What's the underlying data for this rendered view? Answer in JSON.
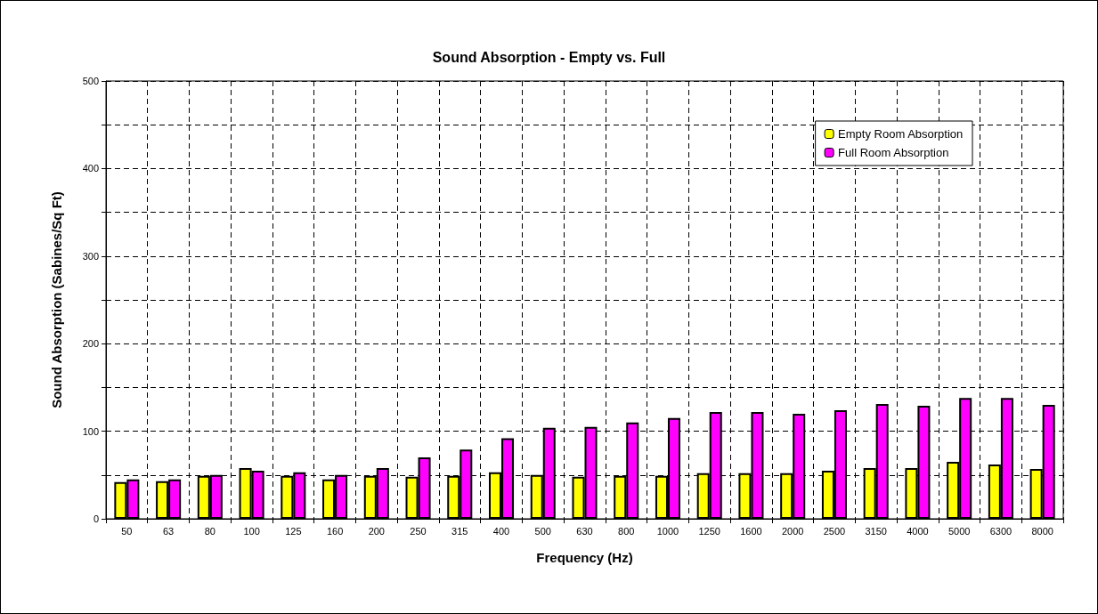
{
  "chart_data": {
    "type": "bar",
    "title": "Sound Absorption - Empty vs. Full",
    "xlabel": "Frequency (Hz)",
    "ylabel": "Sound Absorption (Sabines/Sq Ft)",
    "categories": [
      "50",
      "63",
      "80",
      "100",
      "125",
      "160",
      "200",
      "250",
      "315",
      "400",
      "500",
      "630",
      "800",
      "1000",
      "1250",
      "1600",
      "2000",
      "2500",
      "3150",
      "4000",
      "5000",
      "6300",
      "8000"
    ],
    "series": [
      {
        "name": "Empty Room Absorption",
        "color": "#ffff00",
        "values": [
          42,
          43,
          49,
          58,
          49,
          45,
          49,
          48,
          49,
          53,
          50,
          48,
          49,
          49,
          52,
          52,
          52,
          55,
          58,
          58,
          65,
          62,
          57
        ]
      },
      {
        "name": "Full Room Absorption",
        "color": "#ff00ff",
        "values": [
          45,
          45,
          50,
          55,
          53,
          50,
          58,
          70,
          79,
          92,
          104,
          105,
          110,
          115,
          122,
          122,
          120,
          124,
          131,
          129,
          138,
          138,
          130
        ]
      }
    ],
    "ylim": [
      0,
      500
    ],
    "yticks": [
      0,
      {
        "value": 50,
        "label": null
      },
      100,
      {
        "value": 150,
        "label": null
      },
      200,
      {
        "value": 250,
        "label": null
      },
      300,
      {
        "value": 350,
        "label": null
      },
      400,
      {
        "value": 450,
        "label": null
      },
      500
    ],
    "grid": true,
    "legend": "top right"
  }
}
